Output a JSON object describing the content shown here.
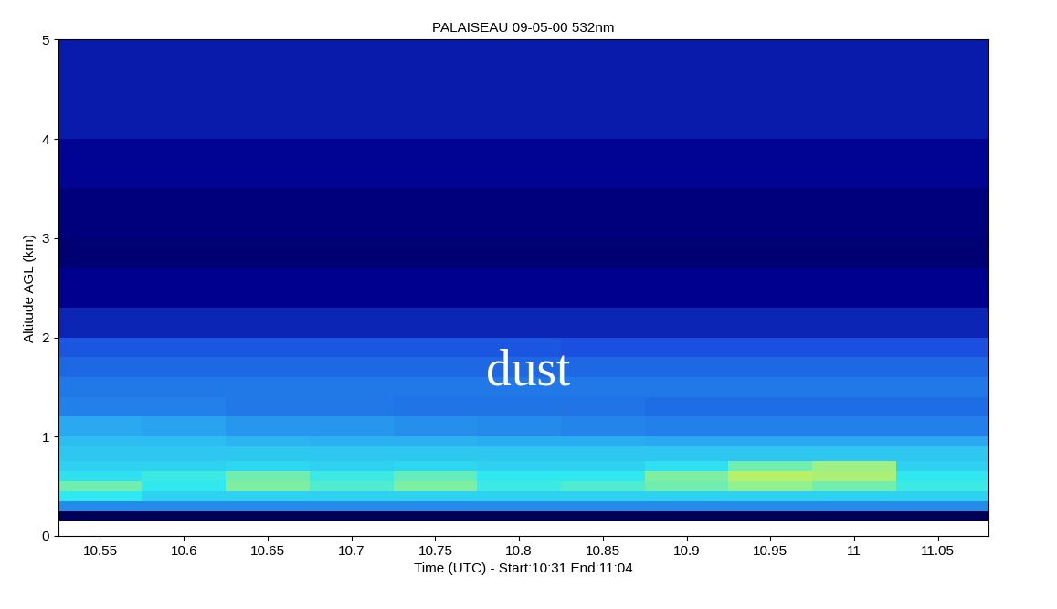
{
  "chart_data": {
    "type": "heatmap",
    "title": "PALAISEAU 09-05-00 532nm",
    "x_label": "Time (UTC) - Start:10:31 End:11:04",
    "y_label": "Altitude AGL (km)",
    "annotation": "dust",
    "xlim": [
      10.525,
      11.08
    ],
    "xticks": [
      10.55,
      10.6,
      10.65,
      10.7,
      10.75,
      10.8,
      10.85,
      10.9,
      10.95,
      11,
      11.05
    ],
    "ylim": [
      0,
      5
    ],
    "yticks": [
      0,
      1,
      2,
      3,
      4,
      5
    ],
    "grid": false,
    "cells": {
      "x_edges": [
        10.525,
        10.575,
        10.625,
        10.675,
        10.725,
        10.775,
        10.825,
        10.875,
        10.925,
        10.975,
        11.025,
        11.08
      ],
      "y_edges": [
        0.15,
        0.25,
        0.35,
        0.45,
        0.55,
        0.65,
        0.75,
        0.9,
        1.0,
        1.2,
        1.4,
        1.6,
        1.8,
        2.0,
        2.3,
        2.7,
        3.0,
        3.5,
        4.0,
        5.0
      ],
      "color_range": [
        0,
        1
      ],
      "values": [
        [
          0.05,
          0.05,
          0.05,
          0.05,
          0.05,
          0.05,
          0.05,
          0.05,
          0.05,
          0.05,
          0.05
        ],
        [
          0.4,
          0.4,
          0.4,
          0.4,
          0.4,
          0.4,
          0.4,
          0.4,
          0.4,
          0.4,
          0.4
        ],
        [
          0.6,
          0.55,
          0.55,
          0.55,
          0.55,
          0.55,
          0.55,
          0.55,
          0.55,
          0.55,
          0.55
        ],
        [
          0.7,
          0.6,
          0.72,
          0.65,
          0.72,
          0.62,
          0.65,
          0.7,
          0.75,
          0.7,
          0.62
        ],
        [
          0.58,
          0.62,
          0.7,
          0.62,
          0.68,
          0.6,
          0.6,
          0.72,
          0.85,
          0.82,
          0.6
        ],
        [
          0.55,
          0.55,
          0.56,
          0.55,
          0.56,
          0.55,
          0.55,
          0.58,
          0.7,
          0.78,
          0.55
        ],
        [
          0.52,
          0.52,
          0.52,
          0.52,
          0.52,
          0.52,
          0.52,
          0.52,
          0.52,
          0.52,
          0.52
        ],
        [
          0.5,
          0.5,
          0.48,
          0.47,
          0.47,
          0.46,
          0.46,
          0.45,
          0.45,
          0.45,
          0.45
        ],
        [
          0.45,
          0.44,
          0.42,
          0.42,
          0.41,
          0.4,
          0.39,
          0.38,
          0.38,
          0.38,
          0.38
        ],
        [
          0.38,
          0.38,
          0.37,
          0.37,
          0.36,
          0.36,
          0.36,
          0.35,
          0.35,
          0.35,
          0.35
        ],
        [
          0.37,
          0.37,
          0.37,
          0.37,
          0.37,
          0.37,
          0.37,
          0.37,
          0.37,
          0.37,
          0.37
        ],
        [
          0.34,
          0.34,
          0.34,
          0.34,
          0.34,
          0.34,
          0.34,
          0.34,
          0.34,
          0.34,
          0.34
        ],
        [
          0.31,
          0.31,
          0.31,
          0.31,
          0.31,
          0.31,
          0.3,
          0.3,
          0.3,
          0.3,
          0.3
        ],
        [
          0.22,
          0.22,
          0.22,
          0.22,
          0.22,
          0.22,
          0.22,
          0.22,
          0.22,
          0.22,
          0.22
        ],
        [
          0.15,
          0.15,
          0.15,
          0.15,
          0.15,
          0.15,
          0.15,
          0.15,
          0.15,
          0.15,
          0.15
        ],
        [
          0.1,
          0.1,
          0.1,
          0.1,
          0.1,
          0.1,
          0.1,
          0.1,
          0.1,
          0.1,
          0.1
        ],
        [
          0.12,
          0.12,
          0.12,
          0.12,
          0.12,
          0.12,
          0.12,
          0.12,
          0.12,
          0.12,
          0.12
        ],
        [
          0.16,
          0.16,
          0.16,
          0.16,
          0.16,
          0.16,
          0.16,
          0.16,
          0.16,
          0.16,
          0.16
        ],
        [
          0.2,
          0.2,
          0.2,
          0.2,
          0.2,
          0.2,
          0.2,
          0.2,
          0.2,
          0.2,
          0.2
        ]
      ]
    }
  }
}
